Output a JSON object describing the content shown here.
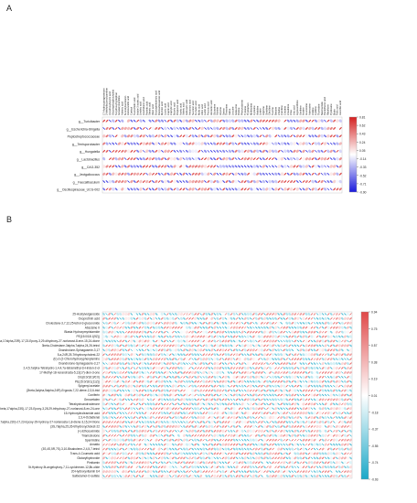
{
  "panels": [
    {
      "label": "A",
      "rows": [
        "g__Turicibacter",
        "g__Escherichia-Shigella",
        "Peptostreptococcaceae",
        "g__Terrisporobacter",
        "g__Hungatella",
        "g__Lactobacillus",
        "g__CAG-352",
        "g__Jeotgalicoccus",
        "g__Faecalibaculum",
        "g__Oscillospiraceae_UCG-002"
      ],
      "columns": [
        "17-Hydroxyprogesterone",
        "2-Methylbutyroylcarnitine",
        "3-Hydroxybutyric acid",
        "Glycerophosphocholine",
        "5-Hydroxytryptophan",
        "Isovalerylcarnitine",
        "Adrenic acid",
        "N-Acetylserotonin",
        "Homovanillic acid",
        "Cortisol",
        "Taurocholic acid",
        "Indole-3-acetic acid",
        "Linoleic acid",
        "Arachidonic acid",
        "Palmitic acid",
        "Stearic acid",
        "Oleic acid",
        "Eicosapentaenoic acid",
        "Docosahexaenoic acid",
        "Myristic acid",
        "Lauric acid",
        "Capric acid",
        "Caprylic acid",
        "Butyric acid",
        "Propionic acid",
        "Acetic acid",
        "Valeric acid",
        "Isobutyric acid",
        "Hexanoic acid",
        "Succinic acid",
        "Fumaric acid",
        "Malic acid",
        "Citric acid",
        "Lactic acid",
        "Pyruvic acid",
        "Glutamic acid",
        "Glutamine",
        "Alanine",
        "Glycine",
        "Serine",
        "Threonine",
        "Valine",
        "Leucine",
        "Isoleucine",
        "Proline",
        "Phenylalanine",
        "Tyrosine",
        "Tryptophan",
        "Methionine",
        "Cysteine",
        "Histidine",
        "Lysine",
        "Arginine",
        "Ornithine",
        "Citrulline",
        "Taurine",
        "Betaine",
        "Choline",
        "Carnitine",
        "Creatine",
        "Creatinine",
        "Urea",
        "Uric acid",
        "Hypoxanthine",
        "Xanthine",
        "Inosine",
        "Guanosine",
        "Adenosine",
        "Uridine",
        "Cytidine",
        "Thymidine",
        "Niacinamide",
        "Pantothenic acid",
        "Riboflavin",
        "Pyridoxine",
        "Biotin",
        "Folic acid",
        "Ascorbic acid"
      ],
      "colorbar_ticks": [
        "0.81",
        "0.62",
        "0.43",
        "0.24",
        "0.05",
        "-0.14",
        "-0.33",
        "-0.52",
        "-0.71",
        "-0.90"
      ]
    },
    {
      "label": "B",
      "rows": [
        "25-Acetylvulgaroside",
        "Oxoprothrin acid",
        "Cholestane-3,7,12,25-tetrol-3-glucuronide",
        "Abscisine II",
        "Blasta Hydroxymyristamide",
        "PE(15:0/18:1(9Z))",
        "(3beta,17alpha,23R)-17,23-Epoxy-3,29-dihydroxy-27-norlanost-8-ene-15,24-dione",
        "3beta-Cholestane-3alpha,7alpha,24,26-tetrol",
        "Oxandrolone-Spinagaserie-3,17",
        "5-a,24R,25-Trihydroxycholest-22",
        "(E)-2-(2-Chlorohydroxyphenylamino",
        "Oxandrolone-Spinagaserie-3,17",
        "2,4,5,7alpha-Tetrahydro-1,4,4,7a-tetramethyl-1H-inden-2-ol",
        "17-Methyl-18-norandrosta-5,13(17)-dien-3-one",
        "DG(6:0/18:3/0:0)",
        "PE(15:0/18:1(11Z))",
        "Spigenyl acetate",
        "(2beta,3alpha,5alpha,24R)-Ergosta-7,22-diene-2,3,6-triol",
        "Coniferin",
        "Gmovetalen",
        "Tetrahydroandrosterone",
        "(3beta,17alpha,23S)-17,23-Epoxy-3,28,29-trihydroxy-27-norlanost-8-en-24-one",
        "15-Hydroxylinoleamide acid",
        "2,3,4-Octadienal",
        "(17alpha,23S)-17,23-Epoxy-29-hydroxy-27-norlanosta-1,8-diene-3,15,24-trione",
        "(3S,7alpha,25,26-trihydroxycholest-22",
        "(+)-Ethosuximide",
        "Triamcinolone",
        "Spermidine",
        "Annatto",
        "(3S,4S,5R,7S)-3,10-Bisabolene-2,4,5,7-tetrol",
        "Trans-4-Coumaric acid",
        "Glutarylhydroxide",
        "Pimitamin",
        "5t-Hydroxy-5t-angeloyloxy-7,11-cyclohexen-12,8b-olide",
        "20-Hydroxyvitamin E4",
        "Salbutamol-O-sulfate"
      ],
      "colorbar_ticks": [
        "0.94",
        "0.75",
        "0.57",
        "0.38",
        "0.19",
        "0.01",
        "-0.18",
        "-0.37",
        "-0.55",
        "-0.74",
        "-0.93"
      ]
    }
  ],
  "chart_data": [
    {
      "type": "heatmap",
      "panel": "A",
      "glyph": "ellipse",
      "n_rows": 10,
      "n_cols": 78,
      "value_range": [
        -0.9,
        0.81
      ],
      "colorscale": [
        "#1a1adc",
        "#ffffff",
        "#d42020"
      ],
      "values": []
    },
    {
      "type": "heatmap",
      "panel": "B",
      "glyph": "ellipse",
      "n_rows": 37,
      "n_cols": 90,
      "value_range": [
        -0.93,
        0.94
      ],
      "colorscale": [
        "#1aa8c8",
        "#ffffff",
        "#e04848"
      ],
      "values": []
    }
  ]
}
